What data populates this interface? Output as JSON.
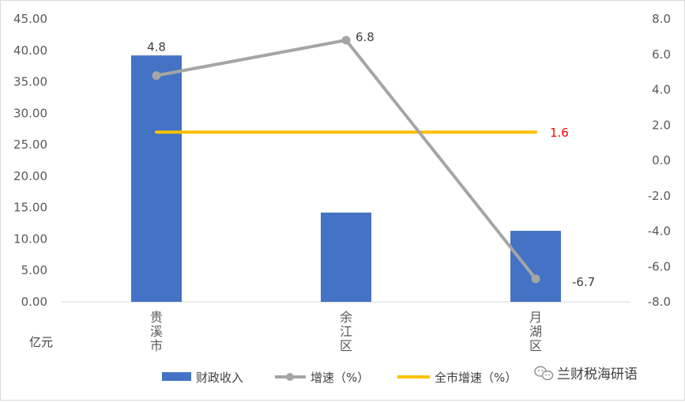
{
  "chart_data": {
    "type": "bar",
    "categories": [
      "贵溪市",
      "余江区",
      "月湖区"
    ],
    "series": [
      {
        "name": "财政收入",
        "type": "bar",
        "axis": "left",
        "values": [
          39.2,
          14.2,
          11.3
        ],
        "color": "#4472C4"
      },
      {
        "name": "增速（%）",
        "type": "line",
        "axis": "right",
        "values": [
          4.8,
          6.8,
          -6.7
        ],
        "labels": [
          "4.8",
          "6.8",
          "-6.7"
        ],
        "color": "#A5A5A5"
      },
      {
        "name": "全市增速（%）",
        "type": "line",
        "axis": "right",
        "values": [
          1.6,
          1.6,
          1.6
        ],
        "label": "1.6",
        "color": "#FFC000",
        "label_color": "#FF0000"
      }
    ],
    "y_left": {
      "min": 0,
      "max": 45,
      "step": 5,
      "ticks": [
        "0.00",
        "5.00",
        "10.00",
        "15.00",
        "20.00",
        "25.00",
        "30.00",
        "35.00",
        "40.00",
        "45.00"
      ],
      "label": "亿元"
    },
    "y_right": {
      "min": -8,
      "max": 8,
      "step": 2,
      "ticks": [
        "-8.0",
        "-6.0",
        "-4.0",
        "-2.0",
        "0.0",
        "2.0",
        "4.0",
        "6.0",
        "8.0"
      ]
    },
    "grid": false,
    "legend_position": "bottom"
  },
  "watermark": {
    "text": "兰财税海研语",
    "icon": "wechat-icon"
  }
}
